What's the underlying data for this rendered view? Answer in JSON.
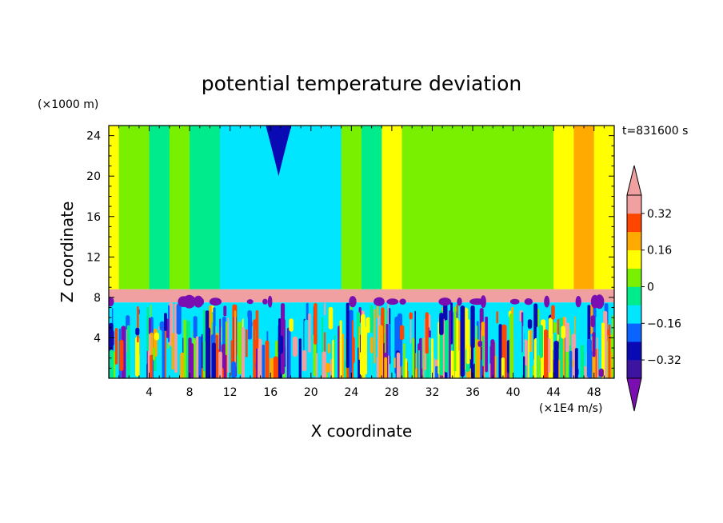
{
  "chart_data": {
    "type": "heatmap",
    "title": "potential temperature deviation",
    "xlabel": "X coordinate",
    "ylabel": "Z coordinate",
    "x_unit": "(×1E4 m/s)",
    "y_unit": "(×1000 m)",
    "time_label": "t=831600 s",
    "xlim": [
      0,
      50
    ],
    "ylim": [
      0,
      25
    ],
    "x_ticks": [
      4,
      8,
      12,
      16,
      20,
      24,
      28,
      32,
      36,
      40,
      44,
      48
    ],
    "y_ticks": [
      4,
      8,
      12,
      16,
      20,
      24
    ],
    "colorbar": {
      "levels": [
        -0.4,
        -0.32,
        -0.24,
        -0.16,
        -0.08,
        0,
        0.08,
        0.16,
        0.24,
        0.32,
        0.4
      ],
      "labels": [
        0.32,
        0.16,
        0,
        -0.16,
        -0.32
      ],
      "label_text": [
        "0.32",
        "0.16",
        "0",
        "−0.16",
        "−0.32"
      ],
      "colors": [
        "#7a0eb0",
        "#3c14a0",
        "#0a0ab4",
        "#0a64ff",
        "#00e6ff",
        "#00eb8c",
        "#78f000",
        "#ffff00",
        "#ffaa00",
        "#ff4600",
        "#f0a0a0"
      ],
      "extend": "both"
    },
    "upper_layer": {
      "z_range": [
        8.8,
        25
      ],
      "columns": [
        {
          "x": [
            0,
            1
          ],
          "v": 0.12
        },
        {
          "x": [
            1,
            2
          ],
          "v": 0.04
        },
        {
          "x": [
            2,
            4
          ],
          "v": 0.02
        },
        {
          "x": [
            4,
            6
          ],
          "v": -0.06
        },
        {
          "x": [
            6,
            8
          ],
          "v": 0.03
        },
        {
          "x": [
            8,
            11
          ],
          "v": -0.04
        },
        {
          "x": [
            11,
            23
          ],
          "v": -0.12
        },
        {
          "x": [
            23,
            25
          ],
          "v": 0.02
        },
        {
          "x": [
            25,
            27
          ],
          "v": -0.04
        },
        {
          "x": [
            27,
            29
          ],
          "v": 0.12
        },
        {
          "x": [
            29,
            31
          ],
          "v": 0.04
        },
        {
          "x": [
            31,
            44
          ],
          "v": 0.03
        },
        {
          "x": [
            44,
            46
          ],
          "v": 0.14
        },
        {
          "x": [
            46,
            48
          ],
          "v": 0.22
        },
        {
          "x": [
            48,
            50
          ],
          "v": 0.1
        }
      ],
      "cold_plume": {
        "x_center": 16.8,
        "z_bottom": 20.0,
        "value": -0.3
      }
    },
    "inversion_layer": {
      "z_range": [
        7.5,
        8.8
      ],
      "value": 0.42
    },
    "lower_layer": {
      "z_range": [
        0,
        7.5
      ],
      "pattern": "turbulent",
      "value_range": [
        -0.42,
        0.42
      ]
    }
  }
}
